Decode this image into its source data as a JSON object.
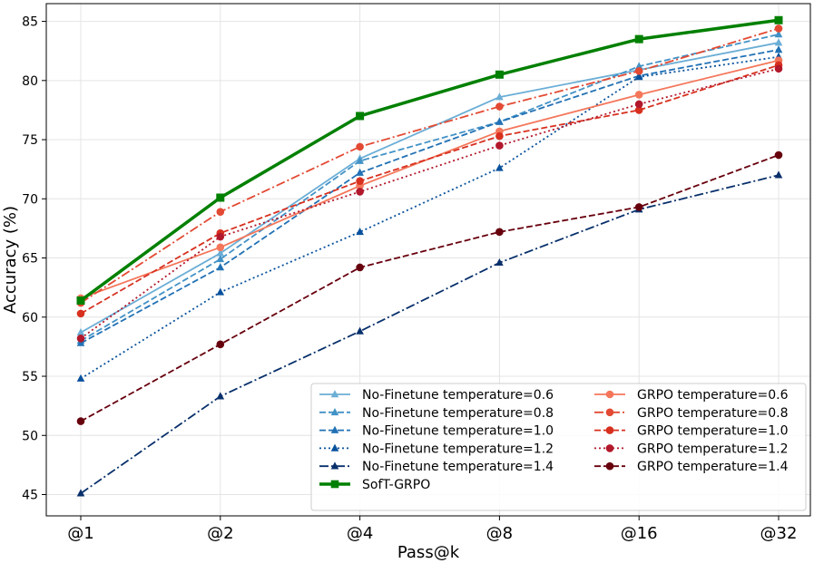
{
  "chart_data": {
    "type": "line",
    "title": "",
    "xlabel": "Pass@k",
    "ylabel": "Accuracy (%)",
    "categories": [
      "@1",
      "@2",
      "@4",
      "@8",
      "@16",
      "@32"
    ],
    "ylim": [
      43.2,
      86.5
    ],
    "yticks": [
      45,
      50,
      55,
      60,
      65,
      70,
      75,
      80,
      85
    ],
    "grid": true,
    "legend_position": "lower-right",
    "series": [
      {
        "name": "No-Finetune temperature=0.6",
        "color": "#6baed6",
        "linestyle": "solid",
        "marker": "triangle",
        "values": [
          58.7,
          65.4,
          73.4,
          78.6,
          80.9,
          83.2
        ]
      },
      {
        "name": "No-Finetune temperature=0.8",
        "color": "#4292c6",
        "linestyle": "dashed",
        "marker": "triangle",
        "values": [
          58.0,
          64.9,
          73.2,
          76.5,
          81.2,
          83.9
        ]
      },
      {
        "name": "No-Finetune temperature=1.0",
        "color": "#2171b5",
        "linestyle": "dashed",
        "marker": "triangle",
        "values": [
          57.8,
          64.2,
          72.2,
          76.5,
          80.4,
          82.6
        ]
      },
      {
        "name": "No-Finetune temperature=1.2",
        "color": "#08519c",
        "linestyle": "dotted",
        "marker": "triangle",
        "values": [
          54.8,
          62.1,
          67.2,
          72.6,
          80.3,
          82.0
        ]
      },
      {
        "name": "No-Finetune temperature=1.4",
        "color": "#08306b",
        "linestyle": "dashdot",
        "marker": "triangle",
        "values": [
          45.1,
          53.3,
          58.8,
          64.6,
          69.1,
          72.0
        ]
      },
      {
        "name": "SofT-GRPO",
        "color": "#008000",
        "linestyle": "solid",
        "marker": "square",
        "values": [
          61.4,
          70.1,
          77.0,
          80.5,
          83.5,
          85.1
        ]
      },
      {
        "name": "GRPO temperature=0.6",
        "color": "#f4765a",
        "linestyle": "solid",
        "marker": "circle",
        "values": [
          61.6,
          65.9,
          71.1,
          75.7,
          78.8,
          81.7
        ]
      },
      {
        "name": "GRPO temperature=0.8",
        "color": "#e34a33",
        "linestyle": "dashdot",
        "marker": "circle",
        "values": [
          61.2,
          68.9,
          74.4,
          77.8,
          80.8,
          84.4
        ]
      },
      {
        "name": "GRPO temperature=1.0",
        "color": "#d7301f",
        "linestyle": "dashed",
        "marker": "circle",
        "values": [
          60.3,
          67.1,
          71.5,
          75.3,
          77.5,
          81.3
        ]
      },
      {
        "name": "GRPO temperature=1.2",
        "color": "#b2182b",
        "linestyle": "dotted",
        "marker": "circle",
        "values": [
          58.2,
          66.8,
          70.6,
          74.5,
          78.0,
          81.0
        ]
      },
      {
        "name": "GRPO temperature=1.4",
        "color": "#67000d",
        "linestyle": "dashed",
        "marker": "circle",
        "values": [
          51.2,
          57.7,
          64.2,
          67.2,
          69.3,
          73.7
        ]
      }
    ]
  }
}
